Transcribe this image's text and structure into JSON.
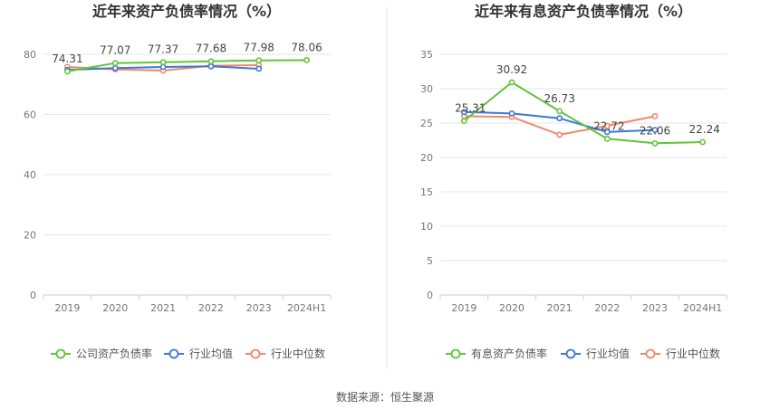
{
  "source": "数据来源：恒生聚源",
  "colors": {
    "company": "#5fc53a",
    "avg": "#3f76d8",
    "median": "#f0876a",
    "grid": "#e6e6e6",
    "axis": "#cccccc",
    "tick": "#777777",
    "title": "#333333",
    "label": "#444444",
    "divider": "#e3e3e3"
  },
  "chart_data": [
    {
      "type": "line",
      "title": "近年来资产负债率情况（%）",
      "categories": [
        "2019",
        "2020",
        "2021",
        "2022",
        "2023",
        "2024H1"
      ],
      "ylim": [
        0,
        80
      ],
      "yticks": [
        0,
        20,
        40,
        60,
        80
      ],
      "grid": true,
      "legend_position": "bottom",
      "series": [
        {
          "name": "公司资产负债率",
          "color_key": "company",
          "values": [
            74.31,
            77.07,
            77.37,
            77.68,
            77.98,
            78.06
          ],
          "labels": [
            "74.31",
            "77.07",
            "77.37",
            "77.68",
            "77.98",
            "78.06"
          ]
        },
        {
          "name": "行业均值",
          "color_key": "avg",
          "values": [
            74.8,
            75.4,
            75.8,
            76.0,
            75.2,
            null
          ]
        },
        {
          "name": "行业中位数",
          "color_key": "median",
          "values": [
            75.8,
            75.0,
            74.6,
            76.2,
            76.4,
            null
          ]
        }
      ]
    },
    {
      "type": "line",
      "title": "近年来有息资产负债率情况（%）",
      "categories": [
        "2019",
        "2020",
        "2021",
        "2022",
        "2023",
        "2024H1"
      ],
      "ylim": [
        0,
        35
      ],
      "yticks": [
        0,
        5,
        10,
        15,
        20,
        25,
        30,
        35
      ],
      "grid": true,
      "legend_position": "bottom",
      "series": [
        {
          "name": "有息资产负债率",
          "color_key": "company",
          "values": [
            25.31,
            30.92,
            26.73,
            22.72,
            22.06,
            22.24
          ],
          "labels": [
            "25.31",
            "30.92",
            "26.73",
            "22.72",
            "22.06",
            "22.24"
          ]
        },
        {
          "name": "行业均值",
          "color_key": "avg",
          "values": [
            26.6,
            26.4,
            25.7,
            23.7,
            24.0,
            null
          ]
        },
        {
          "name": "行业中位数",
          "color_key": "median",
          "values": [
            26.0,
            25.9,
            23.3,
            24.6,
            26.0,
            null
          ]
        }
      ]
    }
  ]
}
